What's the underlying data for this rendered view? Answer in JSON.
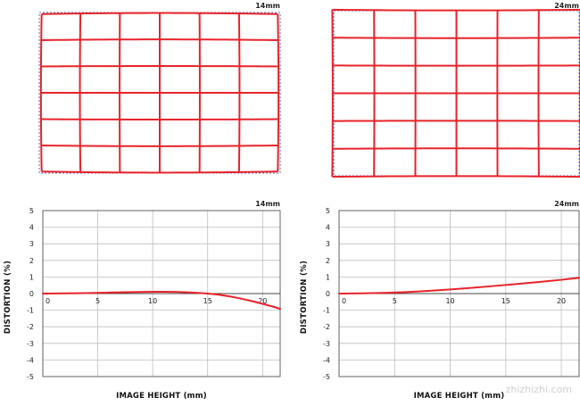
{
  "grids": [
    {
      "title": "14mm",
      "cols": 6,
      "rows": 6,
      "distortion": "barrel",
      "line_color": "#e8232a",
      "ref_color": "#5b6fb5"
    },
    {
      "title": "24mm",
      "cols": 6,
      "rows": 6,
      "distortion": "pincushion",
      "line_color": "#e8232a",
      "ref_color": "#5b6fb5"
    }
  ],
  "chart_data": [
    {
      "type": "line",
      "title": "14mm",
      "xlabel": "IMAGE HEIGHT (mm)",
      "ylabel": "DISTORTION (%)",
      "xlim": [
        0,
        21.6
      ],
      "ylim": [
        -5,
        5
      ],
      "xticks": [
        0,
        5,
        10,
        15,
        20
      ],
      "yticks": [
        5,
        4,
        3,
        2,
        1,
        0,
        -1,
        -2,
        -3,
        -4,
        -5
      ],
      "grid": true,
      "series": [
        {
          "color": "#e8232a",
          "x": [
            0,
            2,
            4,
            6,
            8,
            10,
            11,
            12,
            13,
            14,
            15,
            16,
            17,
            18,
            19,
            20,
            21,
            21.6
          ],
          "y": [
            0,
            0.01,
            0.03,
            0.06,
            0.09,
            0.11,
            0.11,
            0.1,
            0.08,
            0.05,
            0.0,
            -0.07,
            -0.17,
            -0.3,
            -0.45,
            -0.62,
            -0.8,
            -0.92
          ]
        }
      ]
    },
    {
      "type": "line",
      "title": "24mm",
      "xlabel": "IMAGE HEIGHT (mm)",
      "ylabel": "DISTORTION (%)",
      "xlim": [
        0,
        21.6
      ],
      "ylim": [
        -5,
        5
      ],
      "xticks": [
        0,
        5,
        10,
        15,
        20
      ],
      "yticks": [
        5,
        4,
        3,
        2,
        1,
        0,
        -1,
        -2,
        -3,
        -4,
        -5
      ],
      "grid": true,
      "series": [
        {
          "color": "#e8232a",
          "x": [
            0,
            2,
            4,
            6,
            8,
            10,
            12,
            14,
            16,
            18,
            20,
            21.6
          ],
          "y": [
            0,
            0.01,
            0.04,
            0.09,
            0.16,
            0.25,
            0.35,
            0.46,
            0.58,
            0.7,
            0.83,
            0.95
          ]
        }
      ]
    }
  ],
  "watermark": "zhizhizhi.com"
}
